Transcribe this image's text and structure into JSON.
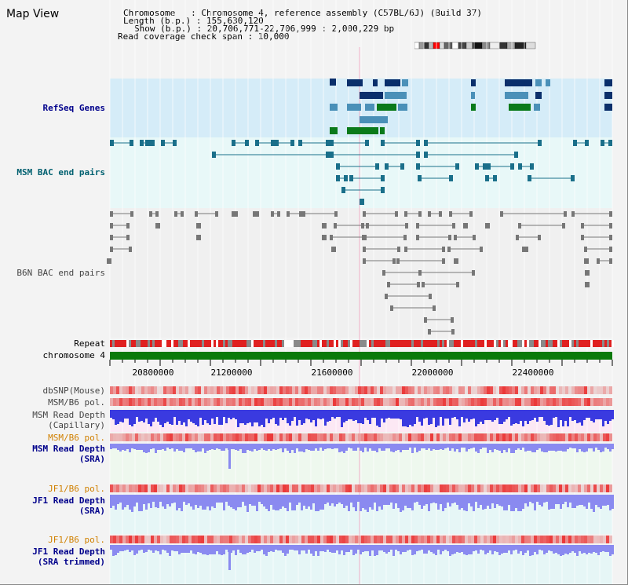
{
  "title": "Map View",
  "info": {
    "line1": "Chromosome   : Chromosome 4, reference assembly (C57BL/6J) (Build 37)",
    "line2": "Length (b.p.) : 155,630,120",
    "line3": "Show (b.p.) : 20,706,771-22,706,999 : 2,000,229 bp",
    "line4": "Read coverage check span : 10,000"
  },
  "tracks": {
    "refseq": "RefSeq Genes",
    "msm_bac": "MSM BAC end pairs",
    "b6n_bac": "B6N BAC end pairs",
    "repeat": "Repeat",
    "chromosome": "chromosome 4",
    "dbsnp": "dbSNP(Mouse)",
    "msm_b6_pol1": "MSM/B6 pol.",
    "msm_depth_cap_1": "MSM Read Depth",
    "msm_depth_cap_2": "(Capillary)",
    "msm_b6_pol2": "MSM/B6 pol.",
    "msm_depth_sra_1": "MSM Read Depth",
    "msm_depth_sra_2": "(SRA)",
    "jf1_b6_pol1": "JF1/B6 pol.",
    "jf1_depth_sra_1": "JF1 Read Depth",
    "jf1_depth_sra_2": "(SRA)",
    "jf1_b6_pol2": "JF1/B6 pol.",
    "jf1_depth_trim_1": "JF1 Read Depth",
    "jf1_depth_trim_2": "(SRA trimmed)"
  },
  "axis_ticks": [
    "20800000",
    "21200000",
    "21600000",
    "22000000",
    "22400000"
  ],
  "colors": {
    "refseq_bg": "#d5ecf8",
    "msm_bac_bg": "#e8f8f8",
    "b6n_bac_bg": "#f0f0f0",
    "gene_dark": "#0a2f6b",
    "gene_mid": "#4a90b8",
    "gene_green": "#0a7a1a",
    "msm_bac": "#1a6f8a",
    "b6n_bac": "#777777",
    "chromosome": "#0a7a0a",
    "repeat_red": "#e02020",
    "depth_blue": "#3a3ae0",
    "depth_light": "#8a8af0",
    "label_navy": "#00008b",
    "label_orange": "#d08000",
    "label_teal": "#006070",
    "label_gray": "#444444"
  }
}
